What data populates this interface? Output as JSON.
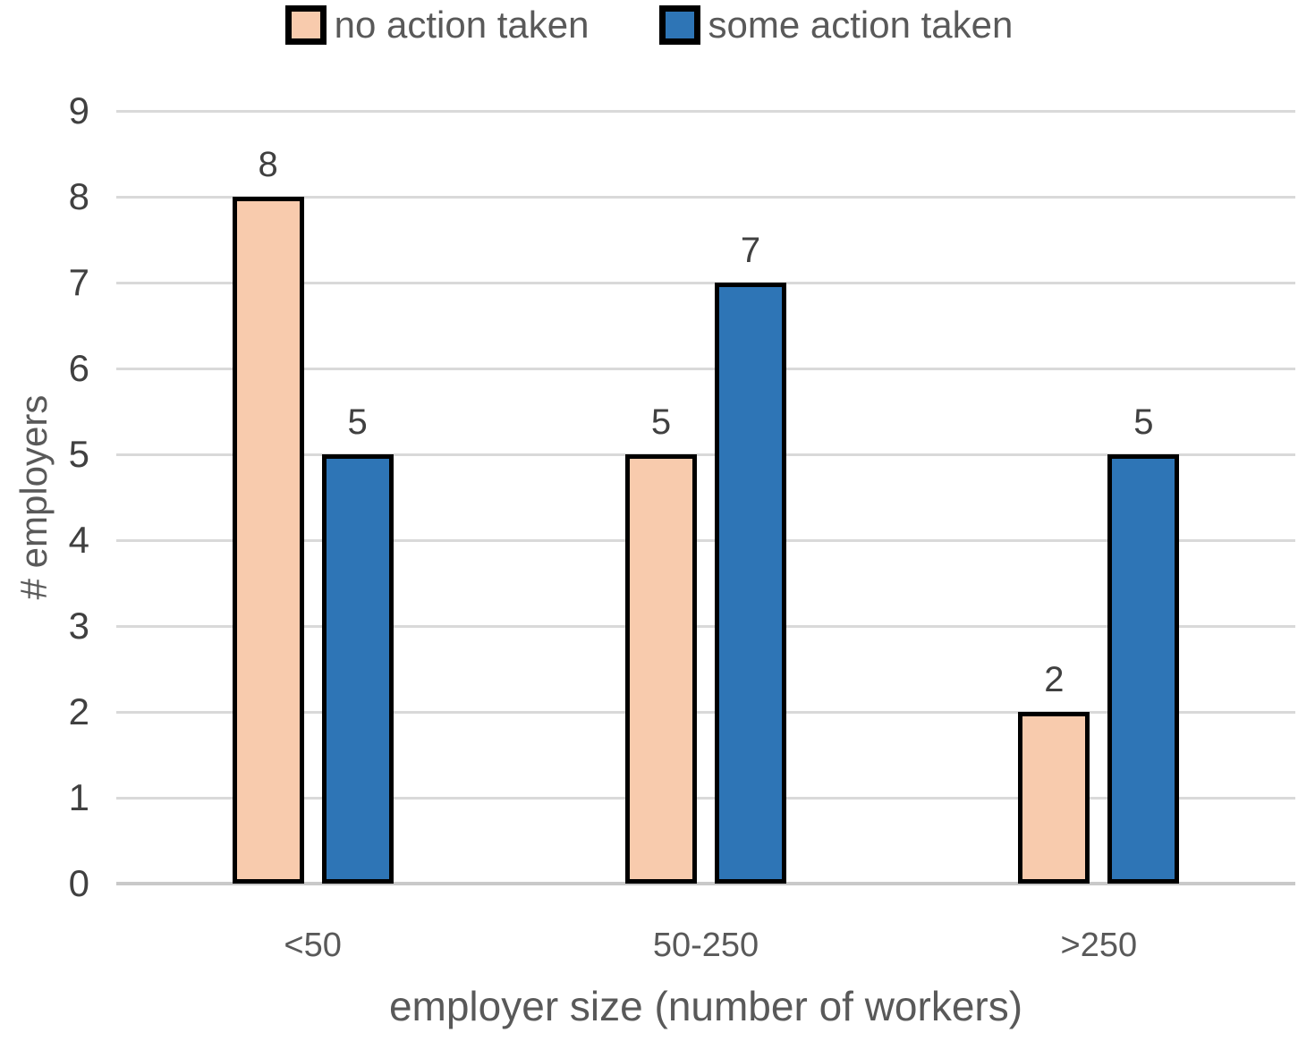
{
  "chart_data": {
    "type": "bar",
    "title": "",
    "categories": [
      "<50",
      "50-250",
      ">250"
    ],
    "series": [
      {
        "name": "no action taken",
        "values": [
          8,
          5,
          2
        ],
        "fill": "#F8CBAD",
        "border": "#000000"
      },
      {
        "name": "some action taken",
        "values": [
          5,
          7,
          5
        ],
        "fill": "#2E75B6",
        "border": "#000000"
      }
    ],
    "xlabel": "employer size (number of workers)",
    "ylabel": "# employers",
    "ylim": [
      0,
      9
    ],
    "ytick_step": 1,
    "yticks": [
      0,
      1,
      2,
      3,
      4,
      5,
      6,
      7,
      8,
      9
    ],
    "grid": true,
    "legend_position": "top",
    "data_labels": true,
    "colors": {
      "gridline": "#d9d9d9",
      "axis_line": "#c9c9c9",
      "tick_label": "#404040",
      "data_label": "#404040",
      "axis_title": "#595959",
      "legend_text": "#595959"
    }
  }
}
